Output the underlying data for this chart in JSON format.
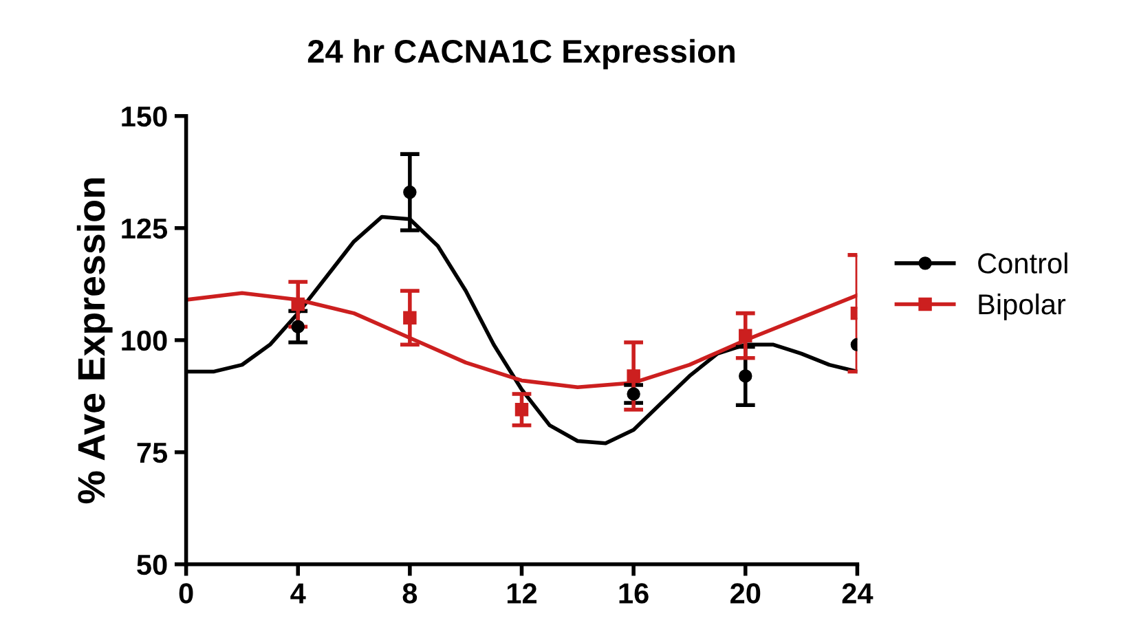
{
  "chart_data": {
    "type": "scatter",
    "title": "24 hr CACNA1C Expression",
    "ylabel": "% Ave Expression",
    "xlim": [
      0,
      24
    ],
    "xticks": [
      0,
      4,
      8,
      12,
      16,
      20,
      24
    ],
    "ylim": [
      50,
      150
    ],
    "yticks": [
      50,
      75,
      100,
      125,
      150
    ],
    "grid": false,
    "legend": "right",
    "series": [
      {
        "name": "Control",
        "marker": "circle",
        "color": "#000000",
        "x": [
          4,
          8,
          12,
          16,
          20,
          24
        ],
        "values": [
          103,
          133,
          null,
          88,
          92,
          99
        ],
        "errors": [
          3.5,
          8.5,
          null,
          2,
          6.5,
          null
        ]
      },
      {
        "name": "Bipolar",
        "marker": "square",
        "color": "#cc1f1f",
        "x": [
          4,
          8,
          12,
          16,
          20,
          24
        ],
        "values": [
          108,
          105,
          84.5,
          92,
          101,
          106
        ],
        "errors": [
          5,
          6,
          3.5,
          7.5,
          5,
          13
        ]
      },
      {
        "type": "line",
        "color": "#000000",
        "x": [
          0,
          1,
          2,
          3,
          4,
          5,
          6,
          7,
          8,
          9,
          10,
          11,
          12,
          13,
          14,
          15,
          16,
          17,
          18,
          19,
          20,
          21,
          22,
          23,
          24
        ],
        "values": [
          93,
          93,
          94.5,
          99,
          106,
          114,
          122,
          127.5,
          127,
          121,
          111,
          99,
          89,
          81,
          77.5,
          77,
          80,
          86,
          92,
          97,
          99,
          99,
          97,
          94.5,
          93
        ]
      },
      {
        "type": "line",
        "color": "#cc1f1f",
        "x": [
          0,
          2,
          4,
          6,
          8,
          10,
          12,
          14,
          16,
          18,
          20,
          22,
          24
        ],
        "values": [
          109,
          110.5,
          109,
          106,
          100.5,
          95,
          91,
          89.5,
          90.5,
          94.5,
          100,
          105,
          110
        ]
      }
    ]
  }
}
